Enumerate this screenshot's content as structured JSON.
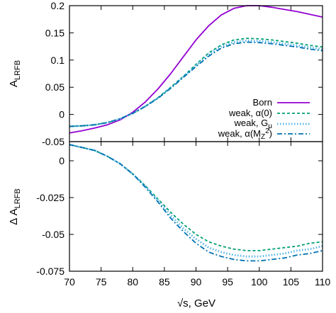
{
  "chart_data": [
    {
      "type": "line",
      "ylabel": "A",
      "ylabel_sub": "LRFB",
      "xlim": [
        70,
        110
      ],
      "ylim": [
        -0.05,
        0.2
      ],
      "yticks": [
        -0.05,
        0,
        0.05,
        0.1,
        0.15,
        0.2
      ],
      "ytick_labels": [
        "-0.05",
        "0",
        "0.05",
        "0.1",
        "0.15",
        "0.2"
      ],
      "grid": false,
      "legend_position": "bottom-right",
      "x": [
        70,
        72,
        74,
        76,
        78,
        80,
        82,
        84,
        86,
        88,
        90,
        92,
        94,
        96,
        98,
        100,
        102,
        104,
        106,
        108,
        110
      ],
      "series": [
        {
          "name": "Born",
          "color": "#9400d3",
          "dash": "solid",
          "values": [
            -0.034,
            -0.03,
            -0.025,
            -0.019,
            -0.01,
            0.004,
            0.023,
            0.047,
            0.075,
            0.106,
            0.137,
            0.163,
            0.183,
            0.195,
            0.2,
            0.2,
            0.197,
            0.193,
            0.189,
            0.184,
            0.179
          ]
        },
        {
          "name": "weak, α(0)",
          "color": "#009e73",
          "dash": "dash",
          "values": [
            -0.022,
            -0.021,
            -0.019,
            -0.015,
            -0.008,
            0.002,
            0.015,
            0.031,
            0.05,
            0.07,
            0.092,
            0.113,
            0.128,
            0.137,
            0.14,
            0.139,
            0.137,
            0.134,
            0.131,
            0.127,
            0.124
          ]
        },
        {
          "name": "weak, Gμ",
          "color": "#56b4e9",
          "dash": "dot",
          "values": [
            -0.022,
            -0.021,
            -0.019,
            -0.015,
            -0.008,
            0.002,
            0.015,
            0.03,
            0.049,
            0.069,
            0.09,
            0.11,
            0.125,
            0.133,
            0.136,
            0.135,
            0.133,
            0.13,
            0.127,
            0.123,
            0.12
          ]
        },
        {
          "name": "weak, α(MZ2)",
          "color": "#0072b2",
          "dash": "dashdot",
          "values": [
            -0.022,
            -0.021,
            -0.019,
            -0.015,
            -0.008,
            0.002,
            0.015,
            0.03,
            0.048,
            0.068,
            0.088,
            0.107,
            0.122,
            0.13,
            0.133,
            0.132,
            0.13,
            0.127,
            0.124,
            0.12,
            0.117
          ]
        }
      ]
    },
    {
      "type": "line",
      "xlabel": "√s, GeV",
      "ylabel": "Δ A",
      "ylabel_sub": "LRFB",
      "xlim": [
        70,
        110
      ],
      "ylim": [
        -0.075,
        0.013
      ],
      "xticks": [
        70,
        75,
        80,
        85,
        90,
        95,
        100,
        105,
        110
      ],
      "yticks": [
        -0.075,
        -0.05,
        -0.025,
        0
      ],
      "ytick_labels": [
        "-0.075",
        "-0.05",
        "-0.025",
        "0"
      ],
      "grid": false,
      "x": [
        70,
        72,
        74,
        76,
        78,
        80,
        82,
        84,
        86,
        88,
        90,
        92,
        94,
        96,
        98,
        100,
        102,
        104,
        106,
        108,
        110
      ],
      "series": [
        {
          "name": "weak, α(0)",
          "color": "#009e73",
          "dash": "dash",
          "values": [
            0.011,
            0.009,
            0.007,
            0.003,
            -0.002,
            -0.009,
            -0.017,
            -0.026,
            -0.035,
            -0.043,
            -0.05,
            -0.055,
            -0.058,
            -0.06,
            -0.061,
            -0.061,
            -0.06,
            -0.059,
            -0.058,
            -0.056,
            -0.055
          ]
        },
        {
          "name": "weak, Gμ",
          "color": "#56b4e9",
          "dash": "dot",
          "values": [
            0.011,
            0.009,
            0.007,
            0.003,
            -0.002,
            -0.009,
            -0.017,
            -0.027,
            -0.037,
            -0.046,
            -0.053,
            -0.059,
            -0.062,
            -0.064,
            -0.065,
            -0.065,
            -0.064,
            -0.063,
            -0.061,
            -0.06,
            -0.058
          ]
        },
        {
          "name": "weak, α(MZ2)",
          "color": "#0072b2",
          "dash": "dashdot",
          "values": [
            0.011,
            0.009,
            0.007,
            0.003,
            -0.002,
            -0.009,
            -0.018,
            -0.028,
            -0.039,
            -0.048,
            -0.056,
            -0.062,
            -0.065,
            -0.067,
            -0.068,
            -0.068,
            -0.067,
            -0.066,
            -0.064,
            -0.063,
            -0.061
          ]
        }
      ]
    }
  ]
}
